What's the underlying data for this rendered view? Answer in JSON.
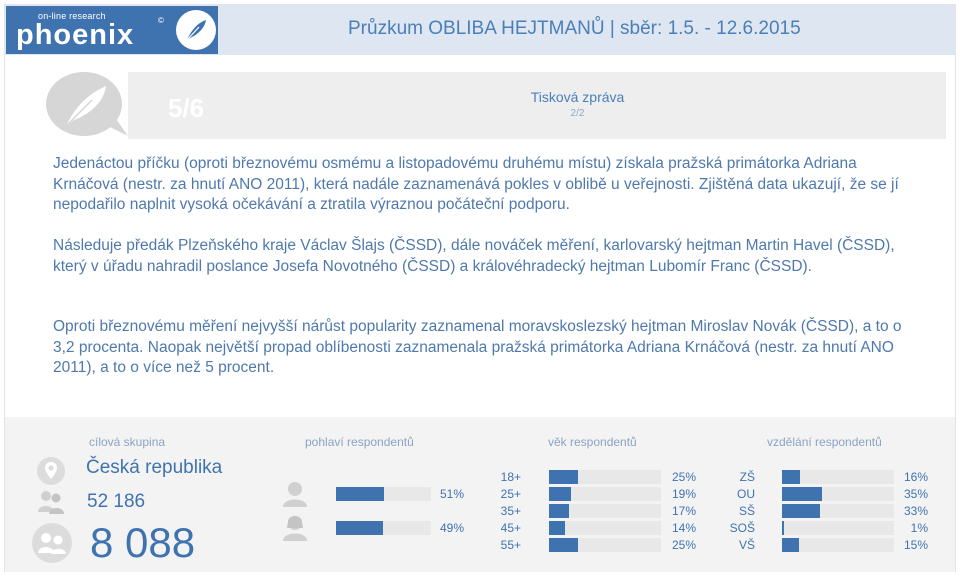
{
  "header": {
    "logo_tagline": "on-line research",
    "logo_name": "phoenix",
    "logo_mark": "©",
    "title": "Průzkum OBLIBA HEJTMANŮ | sběr: 1.5. - 12.6.2015"
  },
  "band": {
    "page": "5/6",
    "label": "Tisková zpráva",
    "sub": "2/2"
  },
  "paragraphs": [
    "Jedenáctou příčku (oproti březnovému osmému a listopadovému druhému místu) získala pražská primátorka Adriana Krnáčová (nestr. za hnutí ANO 2011), která nadále zaznamenává pokles v oblibě u veřejnosti. Zjištěná data ukazují, že se jí nepodařilo naplnit vysoká očekávání a ztratila výraznou počáteční podporu.",
    "Následuje předák Plzeňského kraje Václav Šlajs (ČSSD), dále nováček měření, karlovarský hejtman Martin Havel (ČSSD), který v úřadu nahradil poslance Josefa Novotného (ČSSD) a královéhradecký hejtman Lubomír Franc (ČSSD).",
    "Oproti březnovému měření nejvyšší nárůst popularity zaznamenal moravskoslezský hejtman Miroslav Novák (ČSSD), a to o 3,2 procenta. Naopak největší propad oblíbenosti zaznamenala pražská primátorka Adriana Krnáčová (nestr. za hnutí ANO 2011), a to o více než 5 procent."
  ],
  "stats": {
    "labels": {
      "target": "cílová skupina",
      "gender": "pohlaví respondentů",
      "age": "věk respondentů",
      "education": "vzdělání respondentů"
    },
    "country": "Česká republika",
    "sample_total": "52 186",
    "respondents": "8 088"
  },
  "chart_data": [
    {
      "type": "bar",
      "name": "pohlaví respondentů",
      "categories": [
        "muži",
        "ženy"
      ],
      "values": [
        51,
        49
      ],
      "value_labels": [
        "51%",
        "49%"
      ],
      "category_icons": [
        "male-icon",
        "female-icon"
      ]
    },
    {
      "type": "bar",
      "name": "věk respondentů",
      "categories": [
        "18+",
        "25+",
        "35+",
        "45+",
        "55+"
      ],
      "values": [
        25,
        19,
        17,
        14,
        25
      ],
      "value_labels": [
        "25%",
        "19%",
        "17%",
        "14%",
        "25%"
      ]
    },
    {
      "type": "bar",
      "name": "vzdělání respondentů",
      "categories": [
        "ZŠ",
        "OU",
        "SŠ",
        "SOŠ",
        "VŠ"
      ],
      "values": [
        16,
        35,
        33,
        1,
        15
      ],
      "value_labels": [
        "16%",
        "35%",
        "33%",
        "1%",
        "15%"
      ]
    }
  ],
  "colors": {
    "accent": "#3f73b0",
    "header_bg": "#dee6f1",
    "text": "#4f79ad",
    "track": "#e8e8e8"
  }
}
